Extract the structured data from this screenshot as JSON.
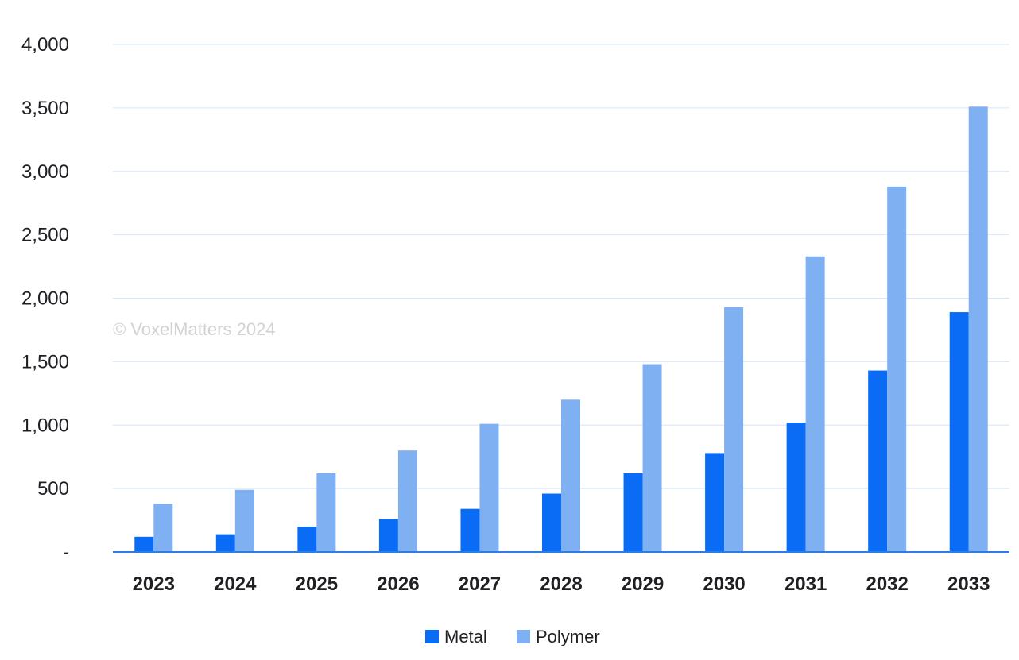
{
  "chart_data": {
    "type": "bar",
    "title": "",
    "xlabel": "",
    "ylabel": "",
    "categories": [
      "2023",
      "2024",
      "2025",
      "2026",
      "2027",
      "2028",
      "2029",
      "2030",
      "2031",
      "2032",
      "2033"
    ],
    "series": [
      {
        "name": "Metal",
        "color": "#0a6cf5",
        "values": [
          120,
          140,
          200,
          260,
          340,
          460,
          620,
          780,
          1020,
          1430,
          1890
        ]
      },
      {
        "name": "Polymer",
        "color": "#7fb0f2",
        "values": [
          380,
          490,
          620,
          800,
          1010,
          1200,
          1480,
          1930,
          2330,
          2880,
          3510
        ]
      }
    ],
    "ylim": [
      0,
      4000
    ],
    "yticks": [
      0,
      500,
      1000,
      1500,
      2000,
      2500,
      3000,
      3500,
      4000
    ],
    "ytick_labels": [
      "-",
      "500",
      "1,000",
      "1,500",
      "2,000",
      "2,500",
      "3,000",
      "3,500",
      "4,000"
    ],
    "grid": true,
    "legend_position": "bottom-center",
    "watermark": "© VoxelMatters 2024"
  }
}
